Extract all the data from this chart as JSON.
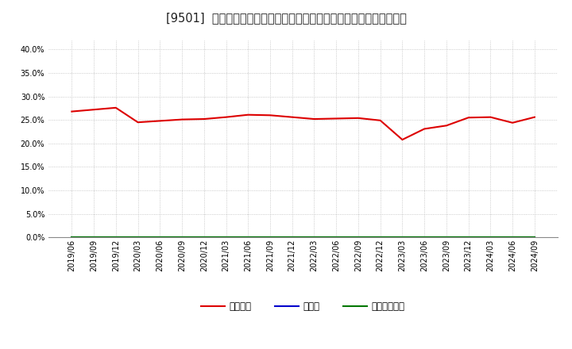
{
  "title": "[9501]  自己資本、のれん、繰延税金資産の総資産に対する比率の推移",
  "x_labels": [
    "2019/06",
    "2019/09",
    "2019/12",
    "2020/03",
    "2020/06",
    "2020/09",
    "2020/12",
    "2021/03",
    "2021/06",
    "2021/09",
    "2021/12",
    "2022/03",
    "2022/06",
    "2022/09",
    "2022/12",
    "2023/03",
    "2023/06",
    "2023/09",
    "2023/12",
    "2024/03",
    "2024/06",
    "2024/09"
  ],
  "equity_ratio": [
    0.268,
    0.272,
    0.276,
    0.245,
    0.248,
    0.251,
    0.252,
    0.256,
    0.261,
    0.26,
    0.256,
    0.252,
    0.253,
    0.254,
    0.249,
    0.208,
    0.231,
    0.238,
    0.255,
    0.256,
    0.244,
    0.256
  ],
  "goodwill_ratio": [
    0,
    0,
    0,
    0,
    0,
    0,
    0,
    0,
    0,
    0,
    0,
    0,
    0,
    0,
    0,
    0,
    0,
    0,
    0,
    0,
    0,
    0
  ],
  "deferred_tax_ratio": [
    0,
    0,
    0,
    0,
    0,
    0,
    0,
    0,
    0,
    0,
    0,
    0,
    0,
    0,
    0,
    0,
    0,
    0,
    0,
    0,
    0,
    0
  ],
  "equity_color": "#dd0000",
  "goodwill_color": "#0000cc",
  "deferred_tax_color": "#007700",
  "legend_labels": [
    "自己資本",
    "のれん",
    "繰延税金資産"
  ],
  "ylim": [
    0.0,
    0.42
  ],
  "yticks": [
    0.0,
    0.05,
    0.1,
    0.15,
    0.2,
    0.25,
    0.3,
    0.35,
    0.4
  ],
  "background_color": "#ffffff",
  "grid_color": "#aaaaaa",
  "title_fontsize": 10.5,
  "axis_fontsize": 7,
  "legend_fontsize": 8.5
}
